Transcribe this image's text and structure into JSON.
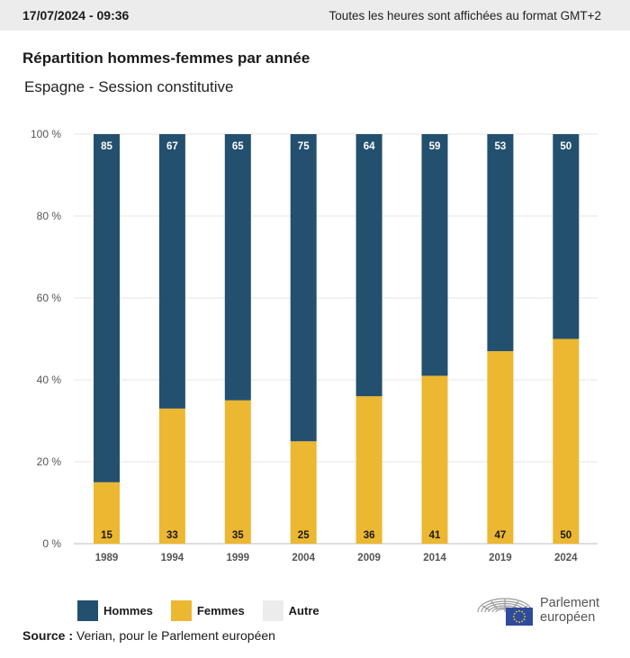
{
  "header": {
    "timestamp": "17/07/2024 - 09:36",
    "timezone_note": "Toutes les heures sont affichées au format GMT+2"
  },
  "chart_data": {
    "type": "bar",
    "stacked": true,
    "title": "Répartition hommes-femmes par année",
    "subtitle": "Espagne - Session constitutive",
    "categories": [
      "1989",
      "1994",
      "1999",
      "2004",
      "2009",
      "2014",
      "2019",
      "2024"
    ],
    "series": [
      {
        "name": "Femmes",
        "color": "#ecb731",
        "values": [
          15,
          33,
          35,
          25,
          36,
          41,
          47,
          50
        ]
      },
      {
        "name": "Hommes",
        "color": "#24506f",
        "values": [
          85,
          67,
          65,
          75,
          64,
          59,
          53,
          50
        ]
      }
    ],
    "ylim": [
      0,
      100
    ],
    "yticks": [
      0,
      20,
      40,
      60,
      80,
      100
    ],
    "ytick_suffix": " %",
    "xlabel": "",
    "ylabel": "",
    "grid": true
  },
  "legend": {
    "items": [
      {
        "label": "Hommes",
        "color": "#24506f"
      },
      {
        "label": "Femmes",
        "color": "#ecb731"
      },
      {
        "label": "Autre",
        "color": "#ececec"
      }
    ]
  },
  "footer": {
    "source_label": "Source :",
    "source_text": "Verian, pour le Parlement européen"
  },
  "logo": {
    "line1": "Parlement",
    "line2": "européen",
    "flag_color": "#2e4c9b",
    "star_color": "#f5d033"
  }
}
